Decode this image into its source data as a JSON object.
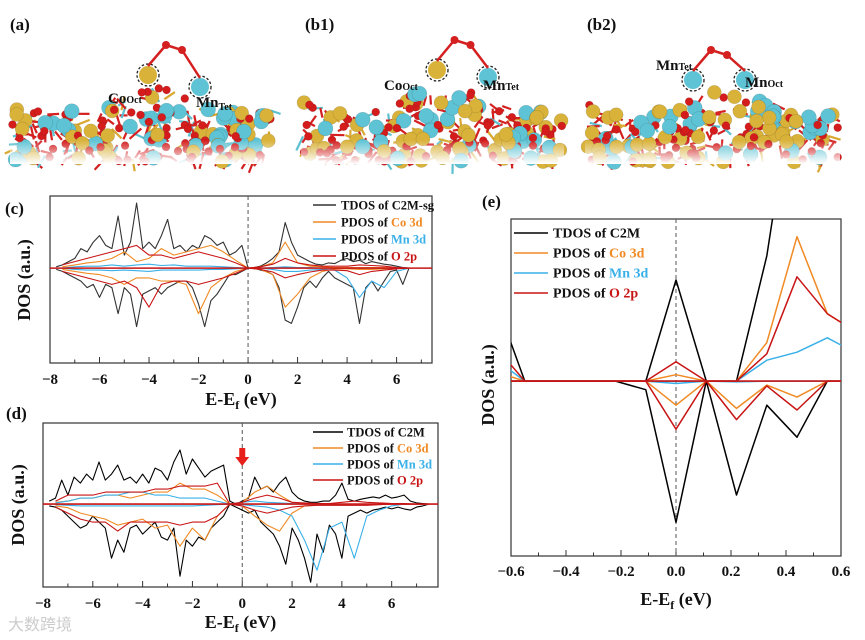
{
  "panels": {
    "a": {
      "label": "(a)",
      "sites": [
        {
          "el": "Co",
          "sub": "Oct"
        },
        {
          "el": "Mn",
          "sub": "Tet"
        }
      ]
    },
    "b1": {
      "label": "(b1)",
      "sites": [
        {
          "el": "Co",
          "sub": "Oct"
        },
        {
          "el": "Mn",
          "sub": "Tet"
        }
      ]
    },
    "b2": {
      "label": "(b2)",
      "sites": [
        {
          "el": "Mn",
          "sub": "Tet"
        },
        {
          "el": "Mn",
          "sub": "Oct"
        }
      ]
    }
  },
  "colors": {
    "tdos": "#000000",
    "co": "#f08a24",
    "mn": "#3ab0e8",
    "o": "#c81414",
    "arrow": "#e8201c"
  },
  "watermark": "大数跨境",
  "chart_data": [
    {
      "id": "c",
      "type": "line",
      "panel_label": "(c)",
      "xlabel": {
        "main": "E-E",
        "sub": "f",
        "unit": " (eV)"
      },
      "ylabel": "DOS (a.u.)",
      "xlim": [
        -8,
        7.43
      ],
      "ylim": [
        -14.6,
        11.1
      ],
      "xticks": [
        -8,
        -6,
        -4,
        -2,
        0,
        2,
        4,
        6
      ],
      "xtick_labels": [
        "−8",
        "−6",
        "−4",
        "−2",
        "0",
        "2",
        "4",
        "6"
      ],
      "fermi_line": 0,
      "legend": [
        {
          "prefix": "TDOS of ",
          "hl": "C2M-sg",
          "hl_color": "tdos"
        },
        {
          "prefix": "PDOS of ",
          "hl": "Co 3d",
          "hl_color": "co"
        },
        {
          "prefix": "PDOS of ",
          "hl": "Mn 3d",
          "hl_color": "mn"
        },
        {
          "prefix": "PDOS of ",
          "hl": "O 2p",
          "hl_color": "o"
        }
      ],
      "series": [
        {
          "name": "TDOS of C2M-sg",
          "color": "tdos",
          "x_start": -7.75,
          "x_step": 0.25,
          "up": [
            0.2,
            0.5,
            1,
            1.5,
            3,
            2.5,
            4,
            5,
            3.5,
            3,
            8,
            2,
            4,
            10,
            3,
            4,
            3,
            5,
            7.5,
            3,
            3.5,
            2.5,
            3.5,
            3,
            5,
            4.5,
            3.5,
            4,
            2,
            2.5,
            3.5,
            0,
            0.1,
            0.3,
            0.8,
            1.5,
            2.5,
            7,
            4,
            2,
            1.5,
            1,
            0.6,
            0.5,
            0.8,
            0.7,
            1.2,
            1.5,
            1,
            1.2,
            0.7,
            1,
            0.8,
            0.6,
            0.5,
            0.3,
            0.1,
            0
          ],
          "down": [
            -0.2,
            -0.5,
            -1,
            -1.5,
            -2,
            -3,
            -2.5,
            -4.5,
            -2.5,
            -3,
            -7,
            -3,
            -4,
            -9,
            -4,
            -3.5,
            -3,
            -4,
            -3,
            -2.5,
            -2,
            -2,
            -3,
            -5.5,
            -9,
            -5,
            -4,
            -2.5,
            -1,
            -1,
            -0.5,
            0,
            0,
            -0.3,
            -0.5,
            -1,
            -3,
            -8,
            -8.5,
            -6,
            -3,
            -2,
            -3,
            -1.5,
            -0.5,
            -1.5,
            -2,
            -2.5,
            -3,
            -8.5,
            -3,
            -2,
            -3.5,
            -2,
            -0.5,
            -0.3,
            -2.5,
            0
          ]
        },
        {
          "name": "PDOS of Co 3d",
          "color": "co",
          "x_start": -7.5,
          "x_step": 0.5,
          "up": [
            0.2,
            0.5,
            0.8,
            1,
            1.5,
            2.5,
            1,
            1.5,
            3,
            2,
            2.5,
            3,
            3.5,
            2.5,
            1.2,
            0,
            0.2,
            0.8,
            4,
            0.8,
            0.3,
            0.2,
            0.1,
            0.1,
            0.1,
            0.1,
            0.1,
            0,
            0
          ],
          "down": [
            -0.2,
            -0.5,
            -0.8,
            -1,
            -1.5,
            -2.5,
            -1.5,
            -1.5,
            -2,
            -2,
            -2.5,
            -7,
            -3,
            -1.5,
            -0.5,
            0,
            -0.2,
            -1,
            -6,
            -4,
            -1.5,
            -0.5,
            -0.1,
            -0.1,
            -0.2,
            -0.2,
            -0.1,
            0,
            0
          ]
        },
        {
          "name": "PDOS of Mn 3d",
          "color": "mn",
          "x_start": -7.5,
          "x_step": 0.5,
          "up": [
            0,
            0.2,
            0.3,
            0.3,
            0.5,
            0.3,
            0.5,
            0.6,
            0.4,
            0.5,
            0.3,
            0.3,
            0.3,
            0.2,
            0.1,
            0,
            0,
            0.1,
            0.2,
            0.1,
            0.1,
            0,
            0,
            0,
            0,
            0,
            0,
            0,
            0
          ],
          "down": [
            0,
            -0.2,
            -0.3,
            -0.3,
            -0.4,
            -0.3,
            -0.4,
            -0.5,
            -0.3,
            -0.3,
            -0.3,
            -0.3,
            -0.2,
            -0.2,
            -0.1,
            0,
            0,
            -0.2,
            -0.5,
            -0.5,
            -0.3,
            -0.2,
            -0.3,
            -1.5,
            -4.5,
            -2,
            -3,
            -0.5,
            0
          ]
        },
        {
          "name": "PDOS of O 2p",
          "color": "o",
          "x_start": -7.5,
          "x_step": 0.5,
          "up": [
            0.5,
            1,
            1.5,
            2,
            2.5,
            3,
            3.5,
            2,
            2,
            1.5,
            2,
            2.5,
            2,
            1.5,
            0.8,
            0,
            0.2,
            0.6,
            1.5,
            0.8,
            0.5,
            0.3,
            0.3,
            0.3,
            0.5,
            0.4,
            0.3,
            0.1,
            0
          ],
          "down": [
            -0.5,
            -1,
            -1.5,
            -2,
            -2.5,
            -2,
            -3,
            -6,
            -2.5,
            -2,
            -2,
            -2.5,
            -2,
            -1.5,
            -0.8,
            0,
            -0.2,
            -0.6,
            -1.5,
            -1,
            -0.6,
            -0.3,
            -0.3,
            -0.4,
            -1,
            -0.5,
            -0.3,
            -0.1,
            0
          ]
        }
      ]
    },
    {
      "id": "d",
      "type": "line",
      "panel_label": "(d)",
      "xlabel": {
        "main": "E-E",
        "sub": "f",
        "unit": " (eV)"
      },
      "ylabel": "DOS (a.u.)",
      "xlim": [
        -8,
        7.86
      ],
      "ylim": [
        -13.8,
        13.5
      ],
      "xticks": [
        -8,
        -6,
        -4,
        -2,
        0,
        2,
        4,
        6
      ],
      "xtick_labels": [
        "−8",
        "−6",
        "−4",
        "−2",
        "0",
        "2",
        "4",
        "6"
      ],
      "fermi_line": 0,
      "arrow_at": 0,
      "legend": [
        {
          "prefix": "TDOS of ",
          "hl": "C2M",
          "hl_color": "tdos"
        },
        {
          "prefix": "PDOS of ",
          "hl": "Co 3d",
          "hl_color": "co"
        },
        {
          "prefix": "PDOS of ",
          "hl": "Mn 3d",
          "hl_color": "mn"
        },
        {
          "prefix": "PDOS of ",
          "hl": "O 2p",
          "hl_color": "o"
        }
      ],
      "series": [
        {
          "name": "TDOS of C2M",
          "color": "tdos",
          "x_start": -7.75,
          "x_step": 0.25,
          "up": [
            0.5,
            1,
            4,
            1.5,
            4.5,
            3.5,
            5,
            4,
            7,
            4,
            5,
            6.5,
            4,
            4.5,
            3.5,
            5,
            3.5,
            6,
            5.5,
            4,
            7,
            9,
            5,
            7.5,
            6,
            4.5,
            5.5,
            6,
            6.5,
            0.5,
            0,
            0.5,
            1,
            4.5,
            2.5,
            3,
            2,
            3.5,
            4.5,
            2,
            1,
            0.5,
            0.3,
            0.3,
            0.5,
            0.5,
            1.5,
            3.5,
            0.8,
            0.5,
            0.8,
            1,
            1.2,
            1,
            1.5,
            1,
            1.2,
            1.5,
            0.5,
            0.2,
            0.1,
            0
          ],
          "down": [
            -0.3,
            -0.5,
            -1,
            -2,
            -3,
            -4,
            -3.5,
            -2,
            -3,
            -4,
            -9,
            -6,
            -8,
            -4,
            -3.5,
            -5,
            -4,
            -3,
            -5.5,
            -6,
            -4,
            -12,
            -6,
            -7,
            -5.5,
            -6,
            -4,
            -3,
            -2,
            0,
            -0.5,
            -1,
            -1.5,
            -1,
            -3,
            -4,
            -5,
            -7,
            -10,
            -4,
            -6,
            -9,
            -13,
            -5,
            -8,
            -3.5,
            -5,
            -9,
            -2,
            -1.5,
            -1,
            -1.5,
            -1,
            -0.8,
            -0.5,
            -0.8,
            -0.5,
            -0.8,
            -1,
            -0.5,
            -0.3,
            0
          ]
        },
        {
          "name": "PDOS of Co 3d",
          "color": "co",
          "x_start": -7.5,
          "x_step": 0.5,
          "up": [
            0.3,
            0.5,
            1,
            1,
            1.5,
            1.5,
            1,
            1.5,
            2,
            2,
            3.5,
            2.5,
            2.5,
            1.5,
            0,
            0.3,
            2,
            3,
            1.5,
            0.3,
            0.1,
            0,
            0,
            0,
            0,
            0,
            0,
            0,
            0,
            0,
            0
          ],
          "down": [
            -0.3,
            -0.6,
            -1.5,
            -2,
            -2.5,
            -3.5,
            -3,
            -2.5,
            -4,
            -3.5,
            -7,
            -4,
            -6,
            -2,
            0,
            -0.3,
            -2,
            -3.5,
            -4.5,
            -1.5,
            -0.3,
            -0.1,
            -0.1,
            -0.1,
            0,
            0,
            0,
            0,
            0,
            0,
            0
          ]
        },
        {
          "name": "PDOS of Mn 3d",
          "color": "mn",
          "x_start": -7.5,
          "x_step": 0.5,
          "up": [
            0.2,
            0.5,
            1,
            1,
            1.5,
            1.5,
            2,
            2,
            1.5,
            1.5,
            1,
            1,
            1,
            0.5,
            0,
            0.3,
            0.5,
            0.3,
            0.2,
            0.1,
            0,
            0,
            0,
            0,
            0,
            0,
            0,
            0,
            0,
            0,
            0
          ],
          "down": [
            -0.1,
            -0.2,
            -0.3,
            -0.3,
            -0.3,
            -0.3,
            -0.3,
            -0.3,
            -0.3,
            -0.3,
            -0.3,
            -0.3,
            -0.2,
            -0.1,
            0,
            -0.1,
            -0.3,
            -0.5,
            -1,
            -2,
            -6,
            -11,
            -4,
            -3,
            -9,
            -2,
            -1,
            -0.3,
            0,
            0,
            0
          ]
        },
        {
          "name": "PDOS of O 2p",
          "color": "o",
          "x_start": -7.5,
          "x_step": 0.5,
          "up": [
            0.5,
            1.5,
            1.5,
            1.5,
            2,
            2,
            2,
            2,
            2.5,
            2.5,
            3,
            3,
            3,
            3.5,
            0,
            0.3,
            1,
            1.5,
            1,
            0.3,
            0.2,
            0.1,
            0.1,
            0.3,
            0.5,
            0.3,
            0.2,
            0.1,
            0.1,
            0,
            0
          ],
          "down": [
            -0.5,
            -1.5,
            -2.5,
            -3,
            -3,
            -4.5,
            -3,
            -3,
            -3,
            -3,
            -3.5,
            -3,
            -3,
            -2,
            0,
            -0.3,
            -1,
            -1.5,
            -1,
            -0.5,
            -0.3,
            -0.2,
            -0.2,
            -0.2,
            -0.2,
            -0.2,
            -0.1,
            0,
            0,
            0,
            0
          ]
        }
      ]
    },
    {
      "id": "e",
      "type": "line",
      "panel_label": "(e)",
      "xlabel": {
        "main": "E-E",
        "sub": "f",
        "unit": " (eV)"
      },
      "ylabel": "DOS (a.u.)",
      "xlim": [
        -0.6,
        0.6
      ],
      "ylim": [
        -10.9,
        10.1
      ],
      "xticks": [
        -0.6,
        -0.4,
        -0.2,
        0,
        0.2,
        0.4,
        0.6
      ],
      "xtick_labels": [
        "−0.6",
        "−0.4",
        "−0.2",
        "0.0",
        "0.2",
        "0.4",
        "0.6"
      ],
      "fermi_line": 0,
      "legend": [
        {
          "prefix": "TDOS of ",
          "hl": "C2M",
          "hl_color": "tdos"
        },
        {
          "prefix": "PDOS of ",
          "hl": "Co 3d",
          "hl_color": "co"
        },
        {
          "prefix": "PDOS of ",
          "hl": "Mn 3d",
          "hl_color": "mn"
        },
        {
          "prefix": "PDOS of ",
          "hl": "O 2p",
          "hl_color": "o"
        }
      ],
      "x": [
        -0.66,
        -0.55,
        -0.44,
        -0.33,
        -0.22,
        -0.11,
        0,
        0.11,
        0.22,
        0.33,
        0.44,
        0.55,
        0.66
      ],
      "series": [
        {
          "name": "TDOS of C2M",
          "color": "tdos",
          "up": [
            5.2,
            0,
            0,
            0,
            0,
            0,
            6.3,
            0,
            0,
            7.8,
            20,
            20,
            20
          ],
          "down": [
            0,
            0,
            0,
            0,
            0,
            -0.54,
            -8.8,
            0,
            -7.1,
            -1.5,
            -3.5,
            0,
            0
          ]
        },
        {
          "name": "PDOS of Co 3d",
          "color": "co",
          "up": [
            0.6,
            0,
            0,
            0,
            0,
            0,
            0.4,
            0,
            0,
            2.4,
            9.0,
            4.2,
            3.0
          ],
          "down": [
            0,
            0,
            0,
            0,
            0,
            0,
            -1.5,
            0,
            -1.7,
            -0.25,
            -1.0,
            0,
            0
          ]
        },
        {
          "name": "PDOS of Mn 3d",
          "color": "mn",
          "up": [
            1.4,
            0,
            0,
            0,
            0,
            0,
            0,
            0,
            0,
            1.3,
            1.8,
            2.7,
            1.7
          ],
          "down": [
            0,
            0,
            0,
            0,
            0,
            0,
            -0.15,
            0,
            -0.05,
            0,
            0,
            0,
            0
          ]
        },
        {
          "name": "PDOS of O 2p",
          "color": "o",
          "up": [
            2.2,
            0,
            0,
            0,
            0,
            0,
            1.2,
            0,
            0,
            1.7,
            6.5,
            4.2,
            3.0
          ],
          "down": [
            0,
            0,
            0,
            0,
            0,
            0,
            -3.0,
            0,
            -2.4,
            -0.3,
            -1.8,
            0,
            0
          ]
        }
      ]
    }
  ]
}
